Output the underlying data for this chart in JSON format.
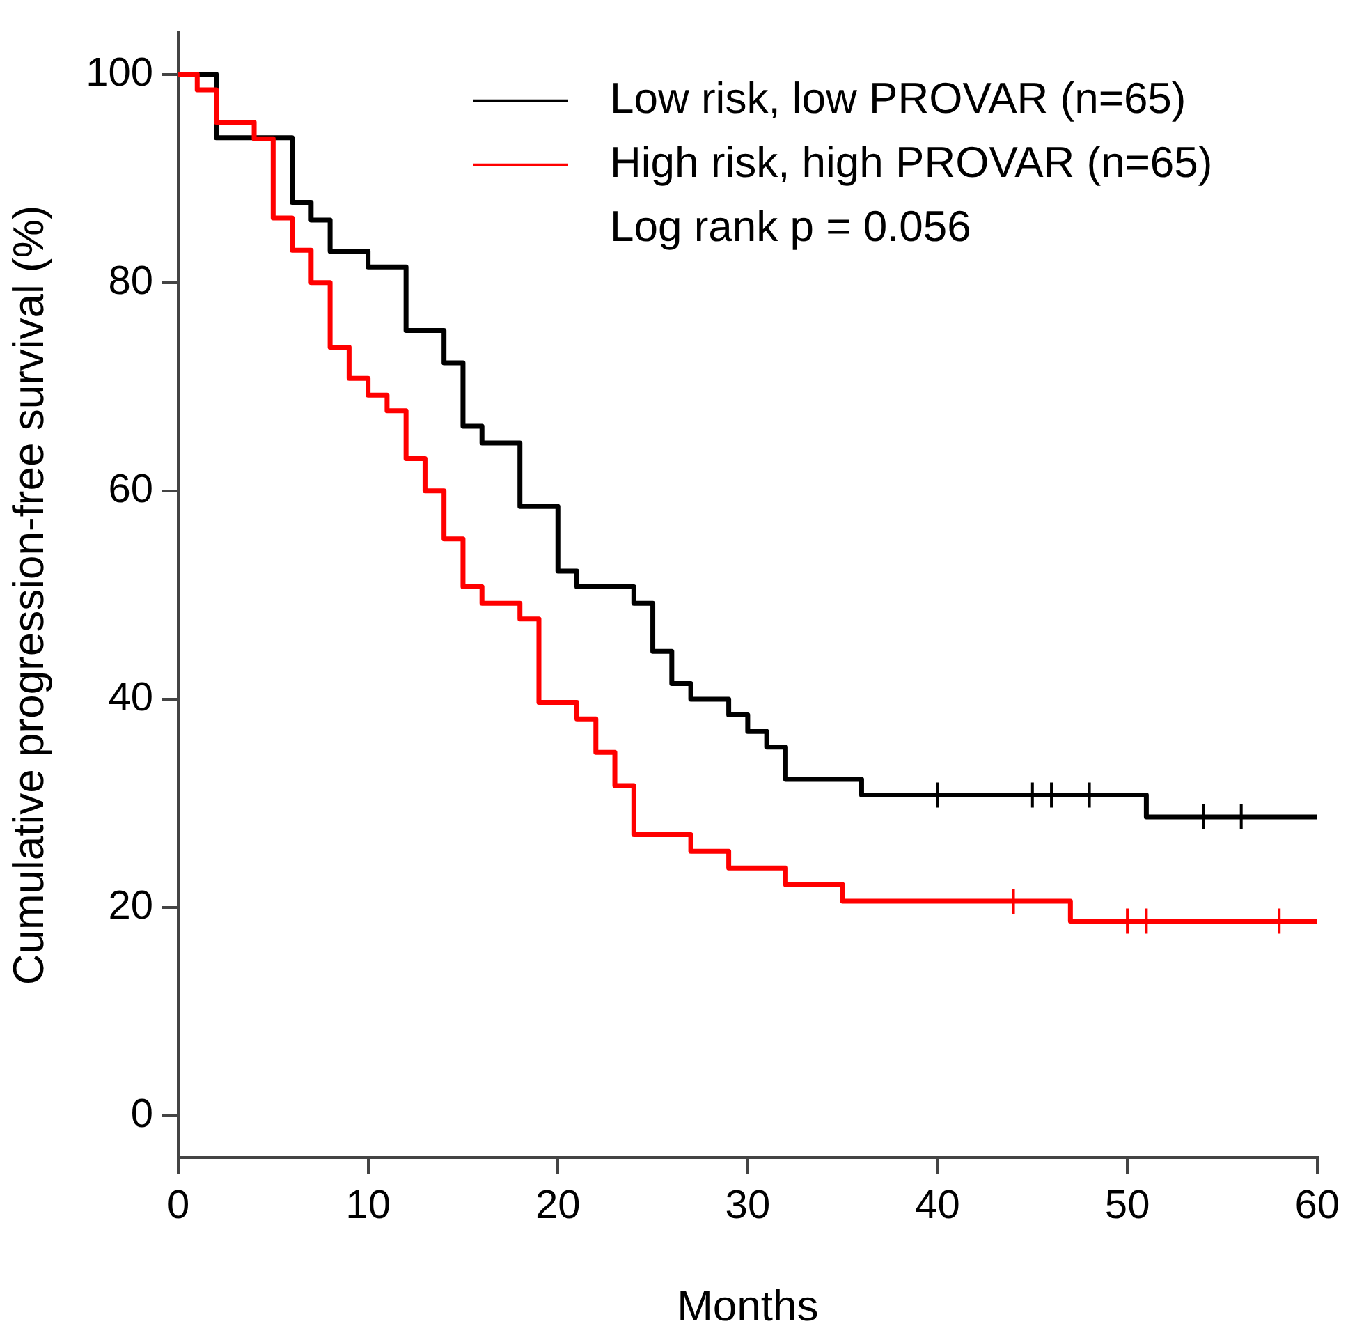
{
  "chart_data": {
    "type": "step",
    "xlabel": "Months",
    "ylabel": "Cumulative progression-free survival (%)",
    "xlim": [
      0,
      60
    ],
    "ylim": [
      -4,
      104
    ],
    "xticks": [
      0,
      10,
      20,
      30,
      40,
      50,
      60
    ],
    "yticks": [
      0,
      20,
      40,
      60,
      80,
      100
    ],
    "grid": false,
    "legend": "top right",
    "annotations": [
      "Log rank p = 0.056"
    ],
    "series": [
      {
        "name": "Low risk, low PROVAR (n=65)",
        "color": "#000000",
        "marker": "none",
        "x": [
          0,
          2,
          6,
          7,
          8,
          10,
          12,
          14,
          15,
          16,
          18,
          20,
          21,
          24,
          25,
          26,
          27,
          29,
          30,
          31,
          32,
          36,
          51,
          60
        ],
        "values": [
          100,
          93.9,
          87.7,
          86,
          83,
          81.5,
          75.4,
          72.3,
          66.2,
          64.6,
          58.5,
          52.3,
          50.8,
          49.2,
          44.6,
          41.5,
          40,
          38.5,
          36.9,
          35.4,
          32.3,
          30.8,
          28.7,
          28.7
        ]
      },
      {
        "name": "High risk, high PROVAR (n=65)",
        "color": "#ff0000",
        "marker": "none",
        "x": [
          0,
          1,
          2,
          4,
          5,
          6,
          7,
          8,
          9,
          10,
          11,
          12,
          13,
          14,
          15,
          16,
          18,
          19,
          21,
          22,
          23,
          24,
          27,
          29,
          32,
          35,
          47,
          60
        ],
        "values": [
          100,
          98.5,
          95.4,
          93.8,
          86.2,
          83.1,
          80,
          73.8,
          70.8,
          69.2,
          67.7,
          63.1,
          60,
          55.4,
          50.8,
          49.2,
          47.7,
          39.7,
          38.1,
          34.9,
          31.7,
          27,
          25.4,
          23.8,
          22.2,
          20.6,
          18.7,
          18.7
        ]
      },
      {
        "color": "#000000",
        "type": "scatter",
        "marker": "cross",
        "x": [
          40,
          45,
          46,
          48,
          54,
          56
        ],
        "values": [
          30.8,
          30.8,
          30.8,
          30.8,
          28.7,
          28.7
        ]
      },
      {
        "color": "#ff0000",
        "type": "scatter",
        "marker": "cross",
        "x": [
          44,
          50,
          51,
          58
        ],
        "values": [
          20.6,
          18.7,
          18.7,
          18.7
        ]
      }
    ]
  }
}
